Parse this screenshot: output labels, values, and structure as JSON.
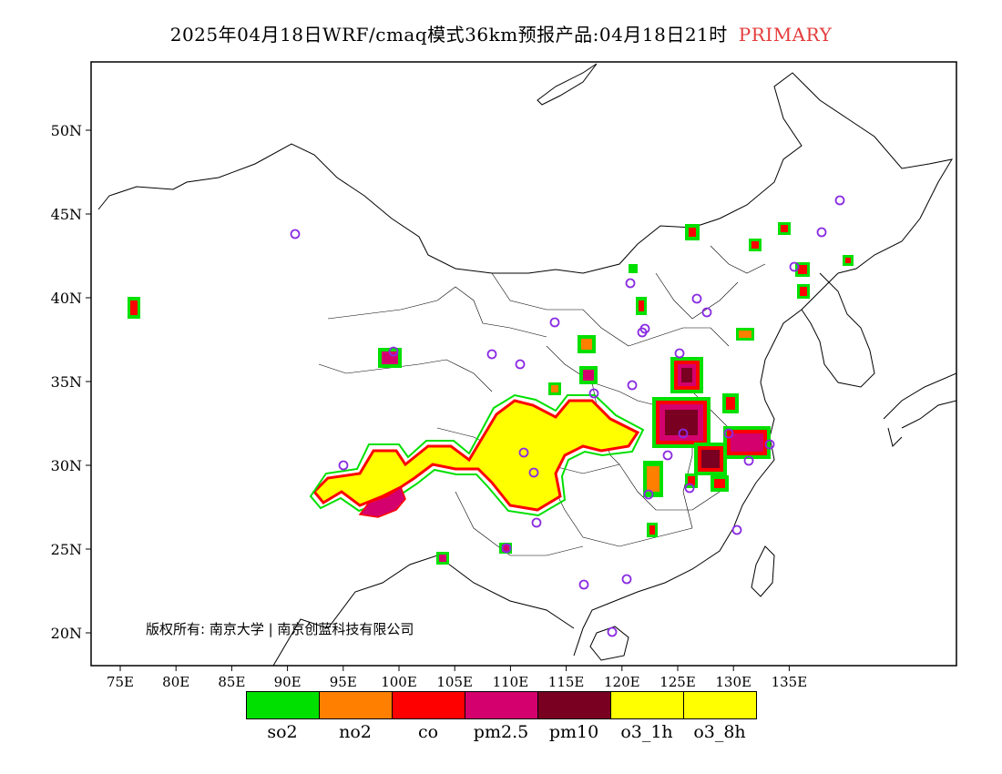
{
  "title": {
    "main": "2025年04月18日WRF/cmaq模式36km预报产品:04月18日21时",
    "product": "PRIMARY",
    "product_color": "#e53b3b"
  },
  "map": {
    "lon_ticks": [
      "75E",
      "80E",
      "85E",
      "90E",
      "95E",
      "100E",
      "105E",
      "110E",
      "115E",
      "120E",
      "125E",
      "130E",
      "135E"
    ],
    "lat_ticks": [
      "50N",
      "45N",
      "40N",
      "35N",
      "30N",
      "25N",
      "20N"
    ],
    "copyright": "版权所有: 南京大学 | 南京创蓝科技有限公司",
    "boundary_color": "#000000",
    "station_marker_color": "#8a2be2"
  },
  "legend": [
    {
      "label": "so2",
      "color": "#00e000"
    },
    {
      "label": "no2",
      "color": "#ff8000"
    },
    {
      "label": "co",
      "color": "#ff0000"
    },
    {
      "label": "pm2.5",
      "color": "#d4006e"
    },
    {
      "label": "pm10",
      "color": "#7a0022"
    },
    {
      "label": "o3_1h",
      "color": "#ffff00"
    },
    {
      "label": "o3_8h",
      "color": "#ffff00"
    }
  ]
}
